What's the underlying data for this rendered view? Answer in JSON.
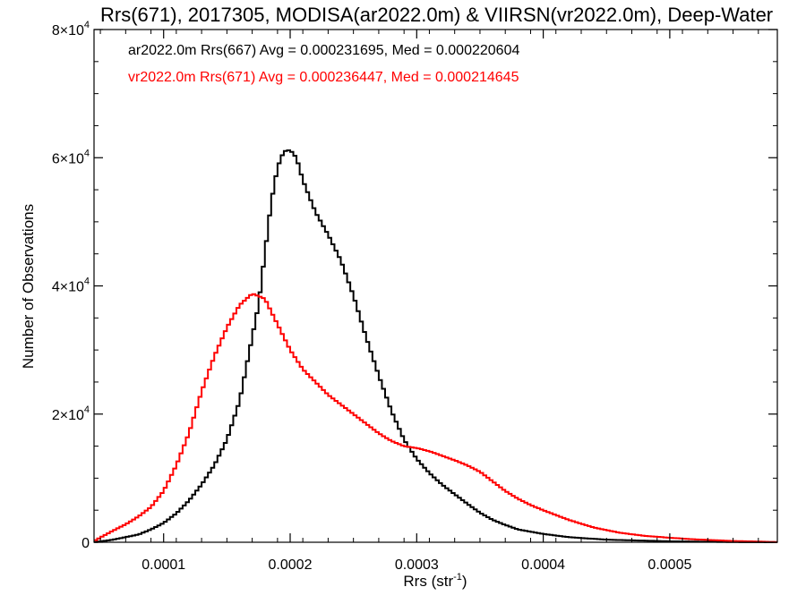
{
  "chart_data": {
    "type": "line",
    "title": "Rrs(671), 2017305, MODISA(ar2022.0m) & VIIRSN(vr2022.0m), Deep-Water",
    "xlabel": "Rrs (str",
    "xlabel_sup": "-1",
    "xlabel_tail": ")",
    "ylabel": "Number of Observations",
    "xlim": [
      4.5e-05,
      0.000585
    ],
    "ylim": [
      0,
      80000
    ],
    "x_ticks": [
      {
        "value": 0.0001,
        "label": "0.0001"
      },
      {
        "value": 0.0002,
        "label": "0.0002"
      },
      {
        "value": 0.0003,
        "label": "0.0003"
      },
      {
        "value": 0.0004,
        "label": "0.0004"
      },
      {
        "value": 0.0005,
        "label": "0.0005"
      }
    ],
    "y_ticks": [
      {
        "value": 0,
        "base": "0",
        "exp": ""
      },
      {
        "value": 20000,
        "base": "2×10",
        "exp": "4"
      },
      {
        "value": 40000,
        "base": "4×10",
        "exp": "4"
      },
      {
        "value": 60000,
        "base": "6×10",
        "exp": "4"
      },
      {
        "value": 80000,
        "base": "8×10",
        "exp": "4"
      }
    ],
    "grid": false,
    "legend_position": "top-left",
    "series": [
      {
        "name": "ar2022.0m Rrs(667) Avg = 0.000231695, Med = 0.000220604",
        "color": "#000000",
        "points": [
          [
            4.5e-05,
            0
          ],
          [
            6e-05,
            400
          ],
          [
            7e-05,
            800
          ],
          [
            8e-05,
            1200
          ],
          [
            9e-05,
            2000
          ],
          [
            0.0001,
            3000
          ],
          [
            0.00011,
            4500
          ],
          [
            0.00012,
            6500
          ],
          [
            0.00013,
            9000
          ],
          [
            0.00014,
            12000
          ],
          [
            0.00015,
            16000
          ],
          [
            0.00016,
            22000
          ],
          [
            0.00017,
            32000
          ],
          [
            0.000175,
            37000
          ],
          [
            0.00018,
            45000
          ],
          [
            0.000185,
            53000
          ],
          [
            0.00019,
            58500
          ],
          [
            0.000195,
            61000
          ],
          [
            0.0002,
            61200
          ],
          [
            0.000205,
            60000
          ],
          [
            0.00021,
            56500
          ],
          [
            0.00022,
            51500
          ],
          [
            0.00023,
            48000
          ],
          [
            0.00024,
            44000
          ],
          [
            0.00025,
            38500
          ],
          [
            0.00026,
            32000
          ],
          [
            0.00027,
            26000
          ],
          [
            0.00028,
            20500
          ],
          [
            0.00029,
            16000
          ],
          [
            0.0003,
            13000
          ],
          [
            0.00031,
            10800
          ],
          [
            0.00032,
            9000
          ],
          [
            0.00033,
            7500
          ],
          [
            0.00034,
            6000
          ],
          [
            0.00035,
            4600
          ],
          [
            0.00036,
            3500
          ],
          [
            0.00037,
            2700
          ],
          [
            0.00038,
            2000
          ],
          [
            0.0004,
            1300
          ],
          [
            0.00042,
            800
          ],
          [
            0.00045,
            400
          ],
          [
            0.0005,
            150
          ],
          [
            0.00055,
            30
          ],
          [
            0.000585,
            0
          ]
        ]
      },
      {
        "name": "vr2022.0m Rrs(671) Avg = 0.000236447, Med = 0.000214645",
        "color": "#ff0000",
        "points": [
          [
            4.5e-05,
            200
          ],
          [
            6e-05,
            1800
          ],
          [
            7e-05,
            2800
          ],
          [
            8e-05,
            4000
          ],
          [
            9e-05,
            5500
          ],
          [
            0.0001,
            8000
          ],
          [
            0.00011,
            12000
          ],
          [
            0.00012,
            17000
          ],
          [
            0.00013,
            23500
          ],
          [
            0.00014,
            29000
          ],
          [
            0.00015,
            33500
          ],
          [
            0.00016,
            37000
          ],
          [
            0.00017,
            38800
          ],
          [
            0.00018,
            38000
          ],
          [
            0.00019,
            34000
          ],
          [
            0.0002,
            30000
          ],
          [
            0.00021,
            27000
          ],
          [
            0.00022,
            25000
          ],
          [
            0.00023,
            23000
          ],
          [
            0.00024,
            21500
          ],
          [
            0.00025,
            20000
          ],
          [
            0.00026,
            18500
          ],
          [
            0.00027,
            17000
          ],
          [
            0.00028,
            15800
          ],
          [
            0.00029,
            15000
          ],
          [
            0.0003,
            14700
          ],
          [
            0.00031,
            14200
          ],
          [
            0.00032,
            13500
          ],
          [
            0.00033,
            12800
          ],
          [
            0.00034,
            12000
          ],
          [
            0.00035,
            11000
          ],
          [
            0.00036,
            9500
          ],
          [
            0.00037,
            8000
          ],
          [
            0.00038,
            6800
          ],
          [
            0.00039,
            5800
          ],
          [
            0.0004,
            5000
          ],
          [
            0.00042,
            3500
          ],
          [
            0.00044,
            2300
          ],
          [
            0.00046,
            1500
          ],
          [
            0.00048,
            1000
          ],
          [
            0.0005,
            700
          ],
          [
            0.00052,
            450
          ],
          [
            0.00055,
            200
          ],
          [
            0.000585,
            30
          ]
        ]
      }
    ]
  }
}
